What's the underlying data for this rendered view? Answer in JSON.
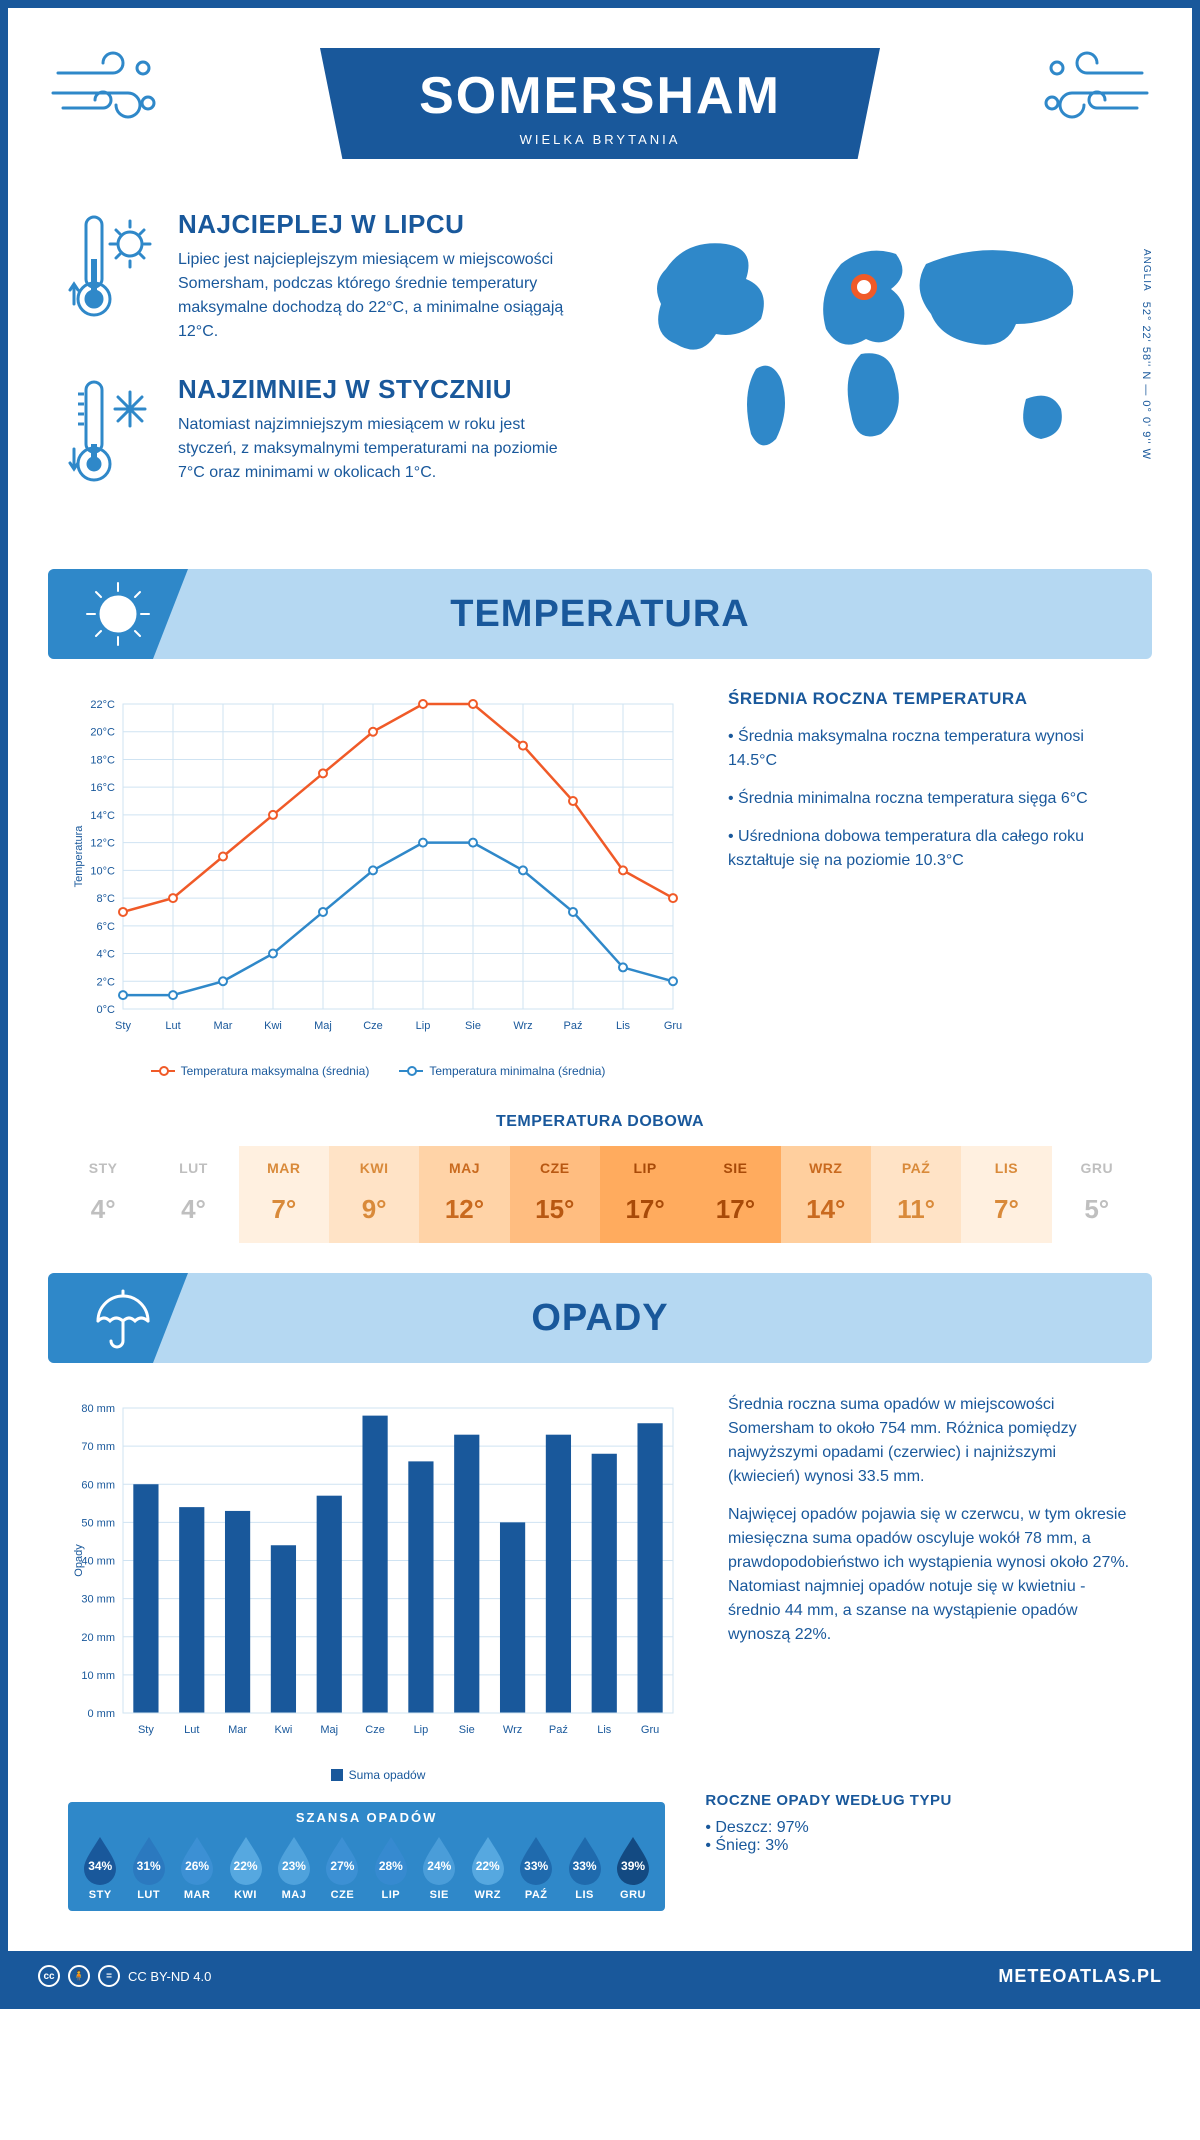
{
  "header": {
    "title": "SOMERSHAM",
    "subtitle": "WIELKA BRYTANIA"
  },
  "coords": {
    "region": "ANGLIA",
    "value": "52° 22' 58'' N — 0° 0' 9'' W"
  },
  "intro": {
    "warm": {
      "heading": "NAJCIEPLEJ W LIPCU",
      "text": "Lipiec jest najcieplejszym miesiącem w miejscowości Somersham, podczas którego średnie temperatury maksymalne dochodzą do 22°C, a minimalne osiągają 12°C."
    },
    "cold": {
      "heading": "NAJZIMNIEJ W STYCZNIU",
      "text": "Natomiast najzimniejszym miesiącem w roku jest styczeń, z maksymalnymi temperaturami na poziomie 7°C oraz minimami w okolicach 1°C."
    }
  },
  "temp_section": {
    "title": "TEMPERATURA",
    "avg_heading": "ŚREDNIA ROCZNA TEMPERATURA",
    "bullets": [
      "Średnia maksymalna roczna temperatura wynosi 14.5°C",
      "Średnia minimalna roczna temperatura sięga 6°C",
      "Uśredniona dobowa temperatura dla całego roku kształtuje się na poziomie 10.3°C"
    ],
    "daily_title": "TEMPERATURA DOBOWA"
  },
  "months_short": [
    "Sty",
    "Lut",
    "Mar",
    "Kwi",
    "Maj",
    "Cze",
    "Lip",
    "Sie",
    "Wrz",
    "Paź",
    "Lis",
    "Gru"
  ],
  "months_upper": [
    "STY",
    "LUT",
    "MAR",
    "KWI",
    "MAJ",
    "CZE",
    "LIP",
    "SIE",
    "WRZ",
    "PAŹ",
    "LIS",
    "GRU"
  ],
  "temp_chart": {
    "ylabel": "Temperatura",
    "ylim": [
      0,
      22
    ],
    "ytick_step": 2,
    "max_series": [
      7,
      8,
      11,
      14,
      17,
      20,
      22,
      22,
      19,
      15,
      10,
      8
    ],
    "min_series": [
      1,
      1,
      2,
      4,
      7,
      10,
      12,
      12,
      10,
      7,
      3,
      2
    ],
    "max_color": "#f05a28",
    "min_color": "#2f88c9",
    "grid_color": "#cfe3f2",
    "legend_max": "Temperatura maksymalna (średnia)",
    "legend_min": "Temperatura minimalna (średnia)"
  },
  "daily": {
    "values": [
      "4°",
      "4°",
      "7°",
      "9°",
      "12°",
      "15°",
      "17°",
      "17°",
      "14°",
      "11°",
      "7°",
      "5°"
    ],
    "bg_colors": [
      "#ffffff",
      "#ffffff",
      "#fff0e0",
      "#ffe3c6",
      "#ffd3a7",
      "#ffbd80",
      "#ffab5e",
      "#ffab5e",
      "#ffcf9e",
      "#ffe3c6",
      "#fff0e0",
      "#ffffff"
    ],
    "text_colors": [
      "#bfbfbf",
      "#bfbfbf",
      "#d98a3a",
      "#d98a3a",
      "#c96a1f",
      "#b85812",
      "#a84a08",
      "#a84a08",
      "#c96a1f",
      "#d98a3a",
      "#d98a3a",
      "#bfbfbf"
    ]
  },
  "precip_section": {
    "title": "OPADY",
    "para1": "Średnia roczna suma opadów w miejscowości Somersham to około 754 mm. Różnica pomiędzy najwyższymi opadami (czerwiec) i najniższymi (kwiecień) wynosi 33.5 mm.",
    "para2": "Najwięcej opadów pojawia się w czerwcu, w tym okresie miesięczna suma opadów oscyluje wokół 78 mm, a prawdopodobieństwo ich wystąpienia wynosi około 27%. Natomiast najmniej opadów notuje się w kwietniu - średnio 44 mm, a szanse na wystąpienie opadów wynoszą 22%."
  },
  "precip_chart": {
    "ylabel": "Opady",
    "ylim": [
      0,
      80
    ],
    "ytick_step": 10,
    "values": [
      60,
      54,
      53,
      44,
      57,
      78,
      66,
      73,
      50,
      73,
      68,
      76
    ],
    "bar_color": "#19589b",
    "grid_color": "#cfe3f2",
    "legend": "Suma opadów"
  },
  "chance": {
    "title": "SZANSA OPADÓW",
    "values": [
      34,
      31,
      26,
      22,
      23,
      27,
      28,
      24,
      22,
      33,
      33,
      39
    ],
    "drop_colors": [
      "#19589b",
      "#2b79bf",
      "#3c90d4",
      "#56a8e0",
      "#4fa2dc",
      "#3c90d4",
      "#368ad0",
      "#4a9dd9",
      "#56a8e0",
      "#1f6aad",
      "#1f6aad",
      "#134a82"
    ]
  },
  "precip_type": {
    "heading": "ROCZNE OPADY WEDŁUG TYPU",
    "items": [
      "Deszcz: 97%",
      "Śnieg: 3%"
    ]
  },
  "footer": {
    "license": "CC BY-ND 4.0",
    "site": "METEOATLAS.PL"
  }
}
